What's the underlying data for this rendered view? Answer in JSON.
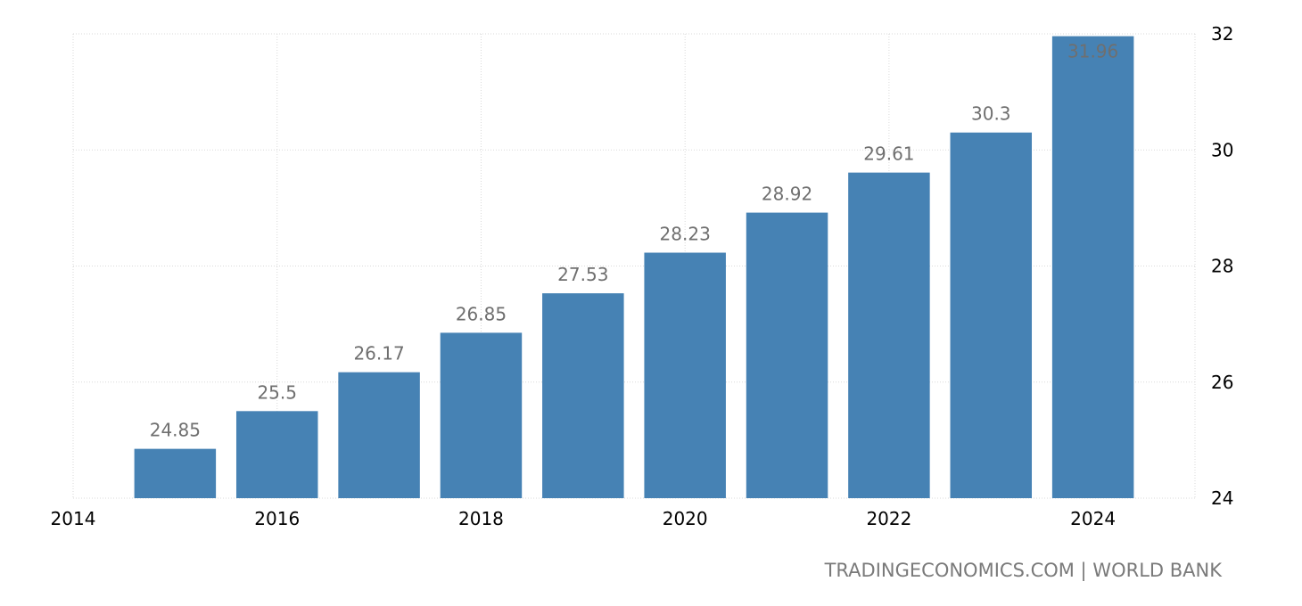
{
  "chart_data": {
    "type": "bar",
    "x": [
      2015,
      2016,
      2017,
      2018,
      2019,
      2020,
      2021,
      2022,
      2023,
      2024
    ],
    "values": [
      24.85,
      25.5,
      26.17,
      26.85,
      27.53,
      28.23,
      28.92,
      29.61,
      30.3,
      31.96
    ],
    "data_labels": [
      "24.85",
      "25.5",
      "26.17",
      "26.85",
      "27.53",
      "28.23",
      "28.92",
      "29.61",
      "30.3",
      "31.96"
    ],
    "xlim": [
      2014,
      2025
    ],
    "ylim": [
      24,
      32
    ],
    "x_ticks": [
      2014,
      2016,
      2018,
      2020,
      2022,
      2024
    ],
    "y_ticks": [
      24,
      26,
      28,
      30,
      32
    ],
    "y_axis_side": "right",
    "grid": true,
    "bar_color": "#4682b4",
    "data_label_color": "#6f6f6f",
    "title": "",
    "xlabel": "",
    "ylabel": ""
  },
  "source": "TRADINGECONOMICS.COM | WORLD BANK"
}
